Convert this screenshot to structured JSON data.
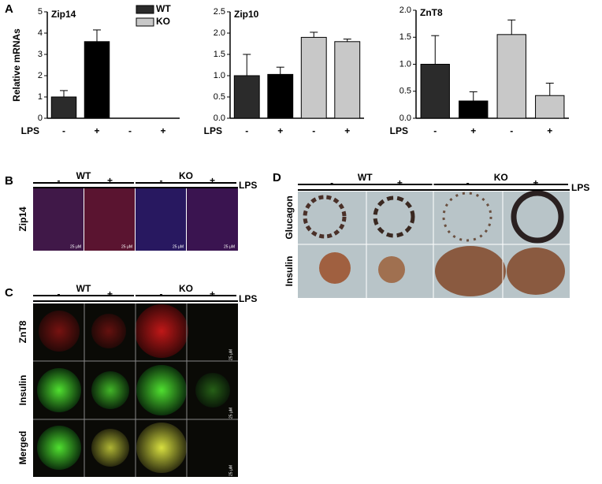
{
  "panel_labels": [
    "A",
    "B",
    "C",
    "D"
  ],
  "chart_data": [
    {
      "type": "bar",
      "title": "Zip14",
      "ylabel": "Relative mRNAs",
      "xlabel": "LPS",
      "categories": [
        "-",
        "+",
        "-",
        "+"
      ],
      "values": [
        1.0,
        3.6,
        null,
        null
      ],
      "errors": [
        0.3,
        0.55,
        null,
        null
      ],
      "colors": [
        "#2b2b2b",
        "#000000",
        "#c8c8c8",
        "#c8c8c8"
      ],
      "legend": [
        {
          "name": "WT",
          "color": "#2b2b2b"
        },
        {
          "name": "KO",
          "color": "#c8c8c8"
        }
      ],
      "ylim": [
        0,
        5
      ],
      "yticks": [
        0,
        1,
        2,
        3,
        4,
        5
      ]
    },
    {
      "type": "bar",
      "title": "Zip10",
      "xlabel": "LPS",
      "categories": [
        "-",
        "+",
        "-",
        "+"
      ],
      "values": [
        1.0,
        1.03,
        1.9,
        1.8
      ],
      "errors": [
        0.5,
        0.17,
        0.12,
        0.06
      ],
      "colors": [
        "#2b2b2b",
        "#000000",
        "#c8c8c8",
        "#c8c8c8"
      ],
      "ylim": [
        0,
        2.5
      ],
      "yticks": [
        {
          "value": 0,
          "label": "0.0"
        },
        {
          "value": 0.5,
          "label": "0.5"
        },
        {
          "value": 1,
          "label": "1.0"
        },
        {
          "value": 1.5,
          "label": "1.5"
        },
        {
          "value": 2,
          "label": "2.0"
        },
        2.5
      ]
    },
    {
      "type": "bar",
      "title": "ZnT8",
      "xlabel": "LPS",
      "categories": [
        "-",
        "+",
        "-",
        "+"
      ],
      "values": [
        1.0,
        0.32,
        1.55,
        0.42
      ],
      "errors": [
        0.53,
        0.17,
        0.27,
        0.23
      ],
      "colors": [
        "#2b2b2b",
        "#000000",
        "#c8c8c8",
        "#c8c8c8"
      ],
      "ylim": [
        0,
        2
      ],
      "yticks": [
        {
          "value": 0,
          "label": "0.0"
        },
        0.5,
        {
          "value": 1,
          "label": "1.0"
        },
        1.5,
        {
          "value": 2,
          "label": "2.0"
        }
      ]
    }
  ],
  "panel_b": {
    "groups": [
      "WT",
      "KO"
    ],
    "lps": [
      "-",
      "+",
      "-",
      "+"
    ],
    "lps_label": "LPS",
    "row_labels": [
      "Zip14"
    ],
    "scale_bars": [
      "25 μM",
      "25 μM",
      "25 μM",
      "25 μM"
    ]
  },
  "panel_c": {
    "groups": [
      "WT",
      "KO"
    ],
    "lps": [
      "-",
      "+",
      "-",
      "+"
    ],
    "lps_label": "LPS",
    "row_labels": [
      "ZnT8",
      "Insulin",
      "Merged"
    ],
    "scale_bars": [
      "25 μM",
      "25 μM",
      "25 μM"
    ]
  },
  "panel_d": {
    "groups": [
      "WT",
      "KO"
    ],
    "lps": [
      "-",
      "+",
      "-",
      "+"
    ],
    "lps_label": "LPS",
    "row_labels": [
      "Glucagon",
      "Insulin"
    ]
  }
}
